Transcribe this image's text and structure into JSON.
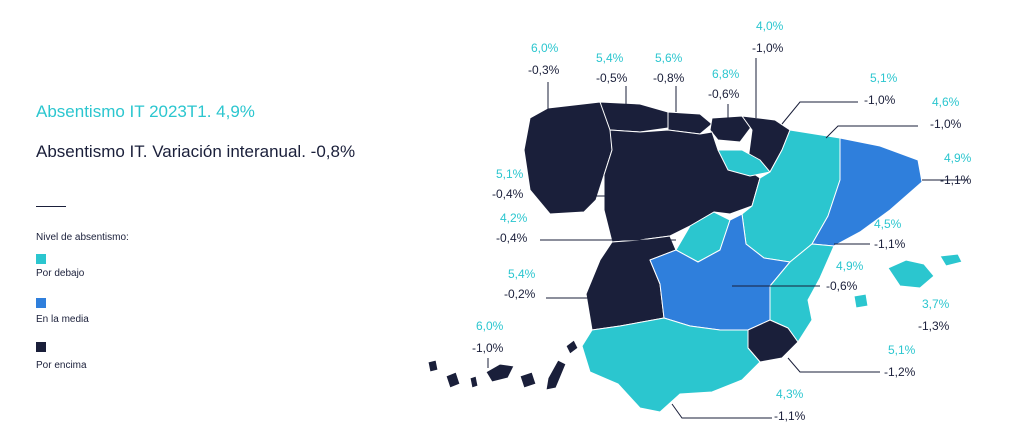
{
  "titles": {
    "absentismo": "Absentismo IT 2023T1. 4,9%",
    "variacion": "Absentismo IT. Variación interanual. -0,8%"
  },
  "legend": {
    "title": "Nivel de absentismo:",
    "items": [
      {
        "label": "Por debajo",
        "color": "#2bc6cf"
      },
      {
        "label": "En la media",
        "color": "#2f7fdc"
      },
      {
        "label": "Por encima",
        "color": "#1a1f3a"
      }
    ]
  },
  "colors": {
    "below": "#2bc6cf",
    "average": "#2f7fdc",
    "above": "#1a1f3a",
    "leader": "#1a1f3a"
  },
  "regions": [
    {
      "id": "galicia",
      "value": "6,0%",
      "change": "-0,3%"
    },
    {
      "id": "asturias",
      "value": "5,4%",
      "change": "-0,5%"
    },
    {
      "id": "cantabria",
      "value": "5,6%",
      "change": "-0,8%"
    },
    {
      "id": "pais-vasco",
      "value": "6,8%",
      "change": "-0,6%"
    },
    {
      "id": "navarra",
      "value": "4,0%",
      "change": "-1,0%"
    },
    {
      "id": "la-rioja",
      "value": "5,1%",
      "change": "-1,0%"
    },
    {
      "id": "aragon",
      "value": "4,6%",
      "change": "-1,0%"
    },
    {
      "id": "cataluna",
      "value": "4,9%",
      "change": "-1,1%"
    },
    {
      "id": "castilla-leon",
      "value": "5,1%",
      "change": "-0,4%"
    },
    {
      "id": "madrid",
      "value": "4,2%",
      "change": "-0,4%"
    },
    {
      "id": "comunidad-valenciana",
      "value": "4,5%",
      "change": "-1,1%"
    },
    {
      "id": "extremadura",
      "value": "5,4%",
      "change": "-0,2%"
    },
    {
      "id": "castilla-la-mancha",
      "value": "4,9%",
      "change": "-0,6%"
    },
    {
      "id": "baleares",
      "value": "3,7%",
      "change": "-1,3%"
    },
    {
      "id": "canarias",
      "value": "6,0%",
      "change": "-1,0%"
    },
    {
      "id": "murcia",
      "value": "5,1%",
      "change": "-1,2%"
    },
    {
      "id": "andalucia",
      "value": "4,3%",
      "change": "-1,1%"
    }
  ]
}
